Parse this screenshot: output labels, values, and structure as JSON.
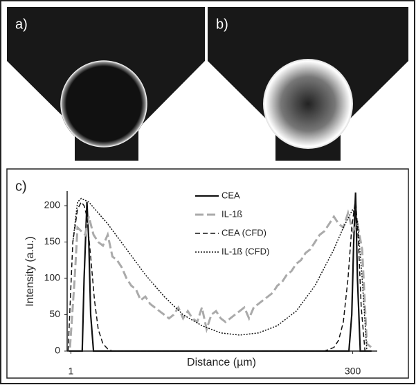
{
  "panels": {
    "a": "a)",
    "b": "b)"
  },
  "chart_data": {
    "type": "line",
    "panel_label": "c)",
    "xlabel": "Distance (µm)",
    "ylabel": "Intensity (a.u.)",
    "xlim": [
      -3,
      326
    ],
    "xticks": [
      1,
      300
    ],
    "ylim": [
      0,
      220
    ],
    "yticks": [
      0,
      50,
      100,
      150,
      200
    ],
    "grid": false,
    "legend": "top",
    "series": [
      {
        "name": "CEA",
        "color": "#111111",
        "linestyle": "solid",
        "x": [
          -1,
          10,
          13,
          15,
          18,
          20,
          22,
          25,
          30,
          293,
          296,
          299,
          301,
          303,
          305,
          308,
          320
        ],
        "values": [
          0,
          0,
          0,
          100,
          205,
          150,
          50,
          0,
          0,
          0,
          0,
          50,
          150,
          218,
          100,
          0,
          0
        ]
      },
      {
        "name": "IL-1ß",
        "color": "#aaaaaa",
        "linestyle": "longdash",
        "x": [
          0,
          5,
          8,
          12,
          16,
          20,
          25,
          30,
          35,
          40,
          45,
          50,
          55,
          60,
          65,
          70,
          75,
          80,
          85,
          90,
          95,
          100,
          105,
          110,
          115,
          120,
          125,
          130,
          135,
          140,
          145,
          150,
          155,
          160,
          165,
          170,
          175,
          180,
          185,
          190,
          195,
          200,
          205,
          210,
          215,
          220,
          225,
          230,
          235,
          240,
          245,
          250,
          255,
          260,
          265,
          270,
          275,
          280,
          285,
          290,
          295,
          300,
          305,
          310,
          315,
          320
        ],
        "values": [
          5,
          100,
          170,
          165,
          160,
          185,
          160,
          150,
          145,
          160,
          130,
          125,
          115,
          100,
          90,
          85,
          70,
          75,
          65,
          60,
          55,
          50,
          45,
          50,
          60,
          45,
          55,
          45,
          40,
          60,
          30,
          50,
          55,
          45,
          40,
          45,
          50,
          55,
          60,
          45,
          60,
          65,
          70,
          75,
          80,
          90,
          95,
          105,
          110,
          120,
          125,
          135,
          140,
          150,
          160,
          165,
          175,
          185,
          175,
          170,
          190,
          165,
          175,
          140,
          10,
          5
        ]
      },
      {
        "name": "CEA (CFD)",
        "color": "#111111",
        "linestyle": "dashed",
        "x": [
          -2,
          3,
          8,
          12,
          15,
          18,
          22,
          26,
          30,
          35,
          40,
          45,
          270,
          280,
          285,
          290,
          295,
          299,
          303,
          306,
          309,
          313
        ],
        "values": [
          0,
          150,
          195,
          205,
          200,
          185,
          130,
          70,
          30,
          10,
          3,
          0,
          0,
          5,
          15,
          40,
          100,
          170,
          210,
          150,
          60,
          0
        ]
      },
      {
        "name": "IL-1ß (CFD)",
        "color": "#111111",
        "linestyle": "dotted",
        "x": [
          3,
          8,
          12,
          20,
          30,
          40,
          60,
          80,
          100,
          120,
          140,
          160,
          180,
          200,
          220,
          240,
          260,
          280,
          290,
          300,
          305,
          310,
          315
        ],
        "values": [
          150,
          205,
          210,
          205,
          190,
          175,
          140,
          105,
          75,
          50,
          35,
          25,
          22,
          25,
          35,
          55,
          90,
          140,
          170,
          195,
          180,
          100,
          0
        ]
      }
    ]
  }
}
